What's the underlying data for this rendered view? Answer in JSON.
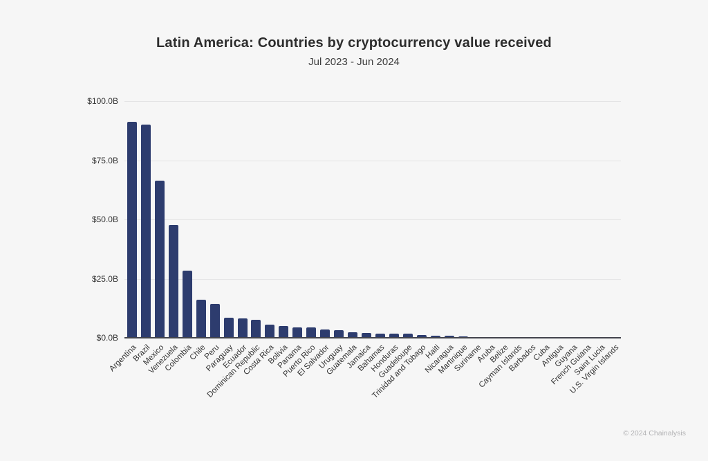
{
  "page": {
    "background": "#f6f6f6",
    "footer": "© 2024 Chainalysis"
  },
  "chart_data": {
    "type": "bar",
    "title": "Latin America: Countries by cryptocurrency value received",
    "subtitle": "Jul 2023 - Jun 2024",
    "unit": "USD billions received",
    "bar_color": "#2d3c6e",
    "grid": true,
    "legend": false,
    "ylim": [
      0,
      100
    ],
    "yticks": [
      0,
      25,
      50,
      75,
      100
    ],
    "ytick_labels": [
      "$0.0B",
      "$25.0B",
      "$50.0B",
      "$75.0B",
      "$100.0B"
    ],
    "categories": [
      "Argentina",
      "Brazil",
      "Mexico",
      "Venezuela",
      "Colombia",
      "Chile",
      "Peru",
      "Paraguay",
      "Ecuador",
      "Dominican Republic",
      "Costa Rica",
      "Bolivia",
      "Panama",
      "Puerto Rico",
      "El Salvador",
      "Uruguay",
      "Guatemala",
      "Jamaica",
      "Bahamas",
      "Honduras",
      "Guadeloupe",
      "Trinidad and Tobago",
      "Haiti",
      "Nicaragua",
      "Martinique",
      "Suriname",
      "Aruba",
      "Belize",
      "Cayman Islands",
      "Barbados",
      "Cuba",
      "Antigua",
      "Guyana",
      "French Guiana",
      "Saint Lucia",
      "U.S. Virgin Islands"
    ],
    "values": [
      91.1,
      90.0,
      66.3,
      47.6,
      28.4,
      16.1,
      14.3,
      8.4,
      8.2,
      7.7,
      5.7,
      5.1,
      4.3,
      4.3,
      3.4,
      3.1,
      2.4,
      2.1,
      1.9,
      1.8,
      1.8,
      1.3,
      1.0,
      0.8,
      0.6,
      0.3,
      0.2,
      0.15,
      0.12,
      0.1,
      0.08,
      0.06,
      0.05,
      0.04,
      0.03,
      0.02
    ]
  }
}
